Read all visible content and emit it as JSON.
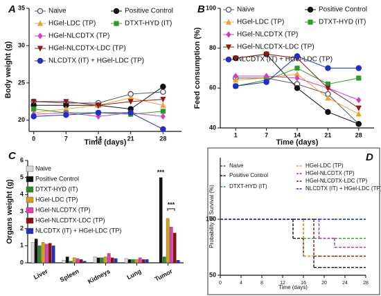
{
  "chart_data": [
    {
      "type": "line",
      "label": "A",
      "xlabel": "Time (days)",
      "ylabel": "Body weight (g)",
      "x": [
        0,
        7,
        14,
        21,
        28
      ],
      "xlim": [
        -1,
        32
      ],
      "xticks": [
        0,
        7,
        14,
        21,
        28
      ],
      "ylim": [
        18.5,
        35
      ],
      "yticks": [
        20,
        25,
        30,
        35
      ],
      "series": [
        {
          "name": "Naive",
          "color": "#555555",
          "marker": "open-circle",
          "values": [
            22.5,
            22.3,
            22.3,
            23.5,
            23.8
          ]
        },
        {
          "name": "Positive Control",
          "color": "#111111",
          "marker": "circle",
          "values": [
            22,
            22,
            22,
            21.5,
            24.5
          ]
        },
        {
          "name": "HGel-LDC (TP)",
          "color": "#f0a030",
          "marker": "triangle",
          "values": [
            21,
            21.5,
            22,
            23,
            22
          ]
        },
        {
          "name": "DTXT-HYD (IT)",
          "color": "#2e9a2e",
          "marker": "square",
          "values": [
            21.5,
            21,
            21,
            20.8,
            21.2
          ]
        },
        {
          "name": "HGel-NLCDTX (TP)",
          "color": "#d040c0",
          "marker": "diamond",
          "values": [
            20.8,
            21,
            20.5,
            21,
            20.5
          ]
        },
        {
          "name": "HGel-NLCDTX-LDC (TP)",
          "color": "#8b1a1a",
          "marker": "triangle-down",
          "values": [
            22.5,
            22.5,
            22,
            22.5,
            22.8
          ]
        },
        {
          "name": "NLCDTX (IT) + HGel-LDC (TP)",
          "color": "#2030c0",
          "marker": "circle",
          "values": [
            20.5,
            20.7,
            21,
            21,
            18.8
          ]
        }
      ]
    },
    {
      "type": "line",
      "label": "B",
      "xlabel": "Time (days)",
      "ylabel": "Feed consumption (%)",
      "categories": [
        "1",
        "7",
        "14",
        "21",
        "28"
      ],
      "ylim": [
        40,
        100
      ],
      "yticks": [
        40,
        60,
        80,
        100
      ],
      "series": [
        {
          "name": "Naive",
          "color": "#555555",
          "marker": "open-circle",
          "values": [
            65,
            65,
            62,
            57,
            42
          ]
        },
        {
          "name": "Positive Control",
          "color": "#111111",
          "marker": "circle",
          "values": [
            75,
            77,
            60,
            48,
            42
          ]
        },
        {
          "name": "HGel-LDC (TP)",
          "color": "#f0a030",
          "marker": "triangle",
          "values": [
            64,
            65,
            67,
            55,
            47
          ]
        },
        {
          "name": "DTXT-HYD (IT)",
          "color": "#2e9a2e",
          "marker": "square",
          "values": [
            61,
            64,
            70,
            62,
            65
          ]
        },
        {
          "name": "HGel-NLCDTX (TP)",
          "color": "#d040c0",
          "marker": "diamond",
          "values": [
            66,
            66,
            65,
            60,
            54
          ]
        },
        {
          "name": "HGel-NLCDTX-LDC (TP)",
          "color": "#8b1a1a",
          "marker": "triangle-down",
          "values": [
            75,
            77,
            75,
            60,
            50
          ]
        },
        {
          "name": "NLCDTX (IT) + HGel-LDC (TP)",
          "color": "#2030c0",
          "marker": "circle",
          "values": [
            61,
            63,
            76,
            70,
            70
          ]
        }
      ]
    },
    {
      "type": "bar",
      "label": "C",
      "ylabel": "Organs weight (g)",
      "categories": [
        "Liver",
        "Spleen",
        "Kidneys",
        "Lung",
        "Tumor"
      ],
      "ylim": [
        0,
        6
      ],
      "yticks": [
        0,
        1,
        2,
        3,
        4,
        5,
        6
      ],
      "annotations": [
        "***",
        "***"
      ],
      "series": [
        {
          "name": "Naive",
          "color": "#d9d9d9",
          "values": [
            1.2,
            0.15,
            0.35,
            0.25,
            0
          ]
        },
        {
          "name": "Positive Control",
          "color": "#111111",
          "values": [
            1.4,
            0.35,
            0.3,
            0.2,
            5.0
          ]
        },
        {
          "name": "DTXT-HYD (IT)",
          "color": "#2a8a2a",
          "values": [
            1.0,
            0.1,
            0.3,
            0.2,
            0.35
          ]
        },
        {
          "name": "HGel-LDC (TP)",
          "color": "#d4a017",
          "values": [
            1.2,
            0.3,
            0.35,
            0.2,
            2.6
          ]
        },
        {
          "name": "HGel-NLCDTX (TP)",
          "color": "#e040b0",
          "values": [
            1.1,
            0.25,
            0.55,
            0.3,
            2.1
          ]
        },
        {
          "name": "HGel-NLCDTX-LDC (TP)",
          "color": "#8b1010",
          "values": [
            1.15,
            0.2,
            0.3,
            0.2,
            1.75
          ]
        },
        {
          "name": "NLCDTX (IT) + HGel-LDC (TP)",
          "color": "#2030c0",
          "values": [
            1.0,
            0.1,
            0.25,
            0.2,
            0.15
          ]
        }
      ]
    },
    {
      "type": "step",
      "label": "D",
      "xlabel": "Time (days)",
      "ylabel": "Probability of Survival (%)",
      "x": [
        0,
        14,
        16,
        18,
        19,
        22
      ],
      "xlim": [
        0,
        28
      ],
      "xticks": [
        0,
        4,
        8,
        12,
        16,
        20,
        24,
        28
      ],
      "ylim": [
        50,
        155
      ],
      "yticks": [
        50,
        100
      ],
      "series": [
        {
          "name": "Naive",
          "color": "#555555",
          "values": [
            100,
            100,
            100,
            100,
            100,
            100
          ]
        },
        {
          "name": "Positive Control",
          "color": "#111111",
          "values": [
            100,
            83,
            67,
            57,
            57,
            57
          ]
        },
        {
          "name": "DTXT-HYD (IT)",
          "color": "#2e9a2e",
          "values": [
            100,
            100,
            83,
            83,
            83,
            83
          ]
        },
        {
          "name": "HGel-LDC (TP)",
          "color": "#f0a030",
          "values": [
            100,
            100,
            67,
            67,
            67,
            67
          ]
        },
        {
          "name": "HGel-NLCDTX (TP)",
          "color": "#b0309a",
          "values": [
            100,
            100,
            100,
            100,
            83,
            75
          ]
        },
        {
          "name": "HGel-NLCDTX-LDC (TP)",
          "color": "#8b1a1a",
          "values": [
            100,
            100,
            100,
            67,
            67,
            67
          ]
        },
        {
          "name": "NLCDTX (IT) + HGel-LDC (TP)",
          "color": "#2030c0",
          "values": [
            100,
            100,
            100,
            100,
            100,
            100
          ]
        }
      ]
    }
  ]
}
